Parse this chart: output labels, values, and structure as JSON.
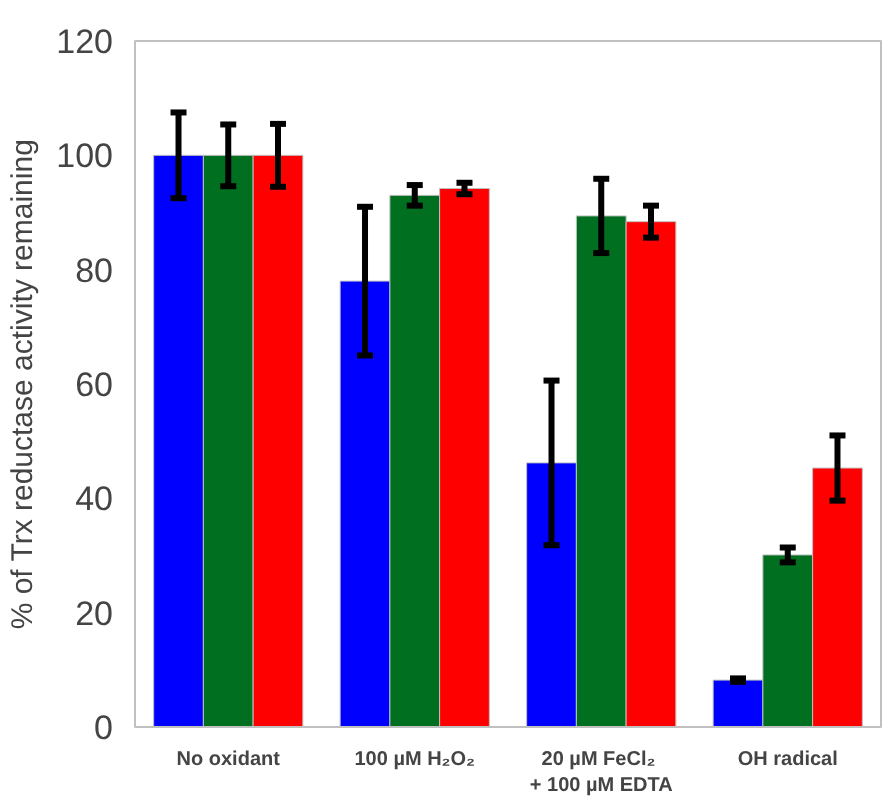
{
  "chart_data": {
    "type": "bar",
    "ylabel": "% of Trx reductase activity remaining",
    "categories": [
      "No oxidant",
      "100 µM H₂O₂",
      "20 µM  FeCl₂\n+ 100 µM EDTA",
      "OH radical"
    ],
    "series": [
      {
        "color": "#0000ff",
        "values": [
          100,
          78,
          46.2,
          8.2
        ],
        "errors": [
          7.5,
          13,
          14.4,
          0.3
        ]
      },
      {
        "color": "#007020",
        "values": [
          100,
          93,
          89.4,
          30.1
        ],
        "errors": [
          5.4,
          1.8,
          6.5,
          1.3
        ]
      },
      {
        "color": "#ff0000",
        "values": [
          100,
          94.2,
          88.4,
          45.3
        ],
        "errors": [
          5.5,
          1,
          2.8,
          5.7
        ]
      }
    ],
    "ylim": [
      0,
      120
    ],
    "yticks": [
      0,
      20,
      40,
      60,
      80,
      100,
      120
    ],
    "grid": false
  }
}
